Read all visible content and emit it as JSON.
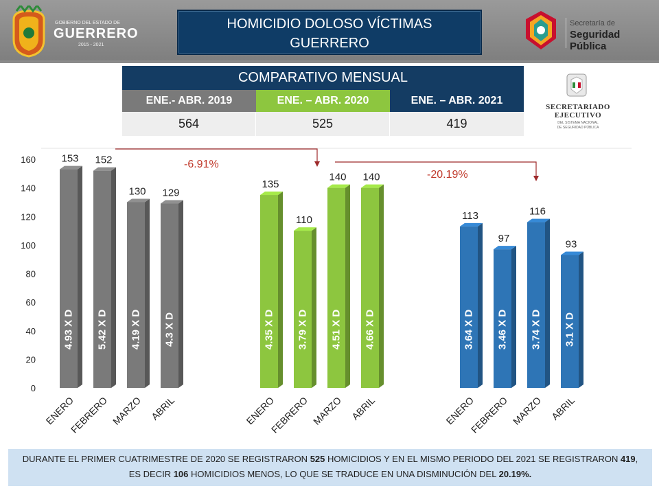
{
  "header": {
    "left_logo": {
      "line1": "GOBIERNO DEL ESTADO DE",
      "line2": "GUERRERO",
      "line3": "2015 - 2021"
    },
    "title_line1": "HOMICIDIO DOLOSO VÍCTIMAS",
    "title_line2": "GUERRERO",
    "right_logo": {
      "line1": "Secretaría de",
      "line2": "Seguridad Pública"
    }
  },
  "comparison": {
    "title": "COMPARATIVO MENSUAL",
    "periods": [
      {
        "label": "ENE.- ABR. 2019",
        "total": "564",
        "color": "#7a7a7a"
      },
      {
        "label": "ENE. – ABR. 2020",
        "total": "525",
        "color": "#8dc63f"
      },
      {
        "label": "ENE. – ABR. 2021",
        "total": "419",
        "color": "#143c63"
      }
    ]
  },
  "se_logo": {
    "line1": "SECRETARIADO",
    "line2": "EJECUTIVO",
    "line3": "DEL SISTEMA NACIONAL",
    "line4": "DE SEGURIDAD PÚBLICA"
  },
  "chart_data": {
    "type": "bar",
    "ylim": [
      0,
      160
    ],
    "yticks": [
      0,
      20,
      40,
      60,
      80,
      100,
      120,
      140,
      160
    ],
    "groups": [
      {
        "name": "",
        "color": "#7a7a7a",
        "categories": [
          "ENERO",
          "FEBRERO",
          "MARZO",
          "ABRIL"
        ],
        "values": [
          153,
          152,
          130,
          129
        ],
        "rates": [
          "4.93 X D",
          "5.42 X D",
          "4.19 X D",
          "4.3 X D"
        ]
      },
      {
        "name": "",
        "color": "#8dc63f",
        "categories": [
          "ENERO",
          "FEBRERO",
          "MARZO",
          "ABRIL"
        ],
        "values": [
          135,
          110,
          140,
          140
        ],
        "rates": [
          "4.35 X D",
          "3.79 X D",
          "4.51 X D",
          "4.66 X D"
        ]
      },
      {
        "name": "",
        "color": "#2e75b6",
        "categories": [
          "ENERO",
          "FEBRERO",
          "MARZO",
          "ABRIL"
        ],
        "values": [
          113,
          97,
          116,
          93
        ],
        "rates": [
          "3.64 X D",
          "3.46 X D",
          "3.74 X D",
          "3.1 X D"
        ]
      }
    ],
    "annotations": [
      "-6.91%",
      "-20.19%"
    ]
  },
  "footer": {
    "p1": "DURANTE EL PRIMER CUATRIMESTRE DE 2020 SE REGISTRARON ",
    "n1": "525",
    "p2": " HOMICIDIOS Y EN EL MISMO PERIODO DEL 2021 SE REGISTRARON ",
    "n2": "419",
    "p3": ",",
    "p4": "ES DECIR ",
    "n3": "106",
    "p5": " HOMICIDIOS MENOS, LO QUE SE TRADUCE EN UNA DISMINUCIÓN DEL ",
    "n4": "20.19%."
  }
}
